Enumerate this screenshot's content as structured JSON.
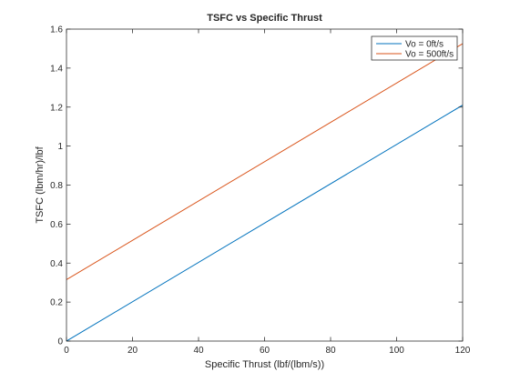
{
  "chart_data": {
    "type": "line",
    "title": "TSFC vs Specific Thrust",
    "xlabel": "Specific Thrust (lbf/(lbm/s))",
    "ylabel": "TSFC (lbm/hr)/lbf",
    "xlim": [
      0,
      120
    ],
    "ylim": [
      0,
      1.6
    ],
    "xticks": [
      0,
      20,
      40,
      60,
      80,
      100,
      120
    ],
    "xtick_labels": [
      "0",
      "20",
      "40",
      "60",
      "80",
      "100",
      "120"
    ],
    "yticks": [
      0,
      0.2,
      0.4,
      0.6,
      0.8,
      1.0,
      1.2,
      1.4,
      1.6
    ],
    "ytick_labels": [
      "0",
      "0.2",
      "0.4",
      "0.6",
      "0.8",
      "1",
      "1.2",
      "1.4",
      "1.6"
    ],
    "grid": false,
    "legend_position": "top-right",
    "series": [
      {
        "name": "Vo = 0ft/s",
        "color": "#0072BD",
        "x": [
          0,
          120
        ],
        "y": [
          0,
          1.21
        ]
      },
      {
        "name": "Vo = 500ft/s",
        "color": "#D95319",
        "x": [
          0,
          120
        ],
        "y": [
          0.315,
          1.525
        ]
      }
    ]
  }
}
